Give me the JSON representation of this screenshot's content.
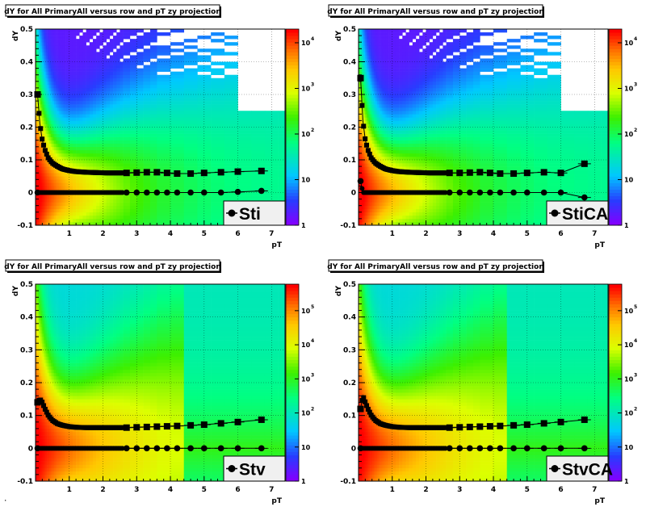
{
  "footer_text": "·",
  "chart_data": [
    {
      "type": "heatmap",
      "title": "dY for All PrimaryAll versus row and pT zy projection",
      "xlabel": "pT",
      "ylabel": "dY",
      "xlim": [
        0,
        7.4
      ],
      "ylim": [
        -0.1,
        0.5
      ],
      "x_ticks": [
        "1",
        "2",
        "3",
        "4",
        "5",
        "6",
        "7"
      ],
      "y_ticks": [
        "-0.1",
        "0",
        "0.1",
        "0.2",
        "0.3",
        "0.4",
        "0.5"
      ],
      "colorbar": {
        "scale": "log",
        "labels": [
          {
            "text": "1",
            "v": 1
          },
          {
            "text": "10",
            "v": 10
          },
          {
            "text": "10",
            "exp": "2",
            "v": 100
          },
          {
            "text": "10",
            "exp": "3",
            "v": 1000
          },
          {
            "text": "10",
            "exp": "4",
            "v": 10000
          }
        ],
        "max": 20000
      },
      "legend": {
        "label": "Sti",
        "placement": "bottom-right"
      },
      "fill": "sparse",
      "sigma_series": {
        "x": [
          0.06,
          0.13,
          0.2,
          0.28,
          0.38,
          0.5,
          0.65,
          0.8,
          1.0,
          1.2,
          1.5,
          1.8,
          2.1,
          2.4,
          2.7,
          3.0,
          3.3,
          3.6,
          3.9,
          4.2,
          4.6,
          5.0,
          5.5,
          6.0,
          6.7
        ],
        "y": [
          0.3,
          0.21,
          0.16,
          0.13,
          0.105,
          0.09,
          0.08,
          0.072,
          0.067,
          0.064,
          0.062,
          0.061,
          0.06,
          0.06,
          0.06,
          0.061,
          0.062,
          0.062,
          0.06,
          0.058,
          0.058,
          0.06,
          0.062,
          0.064,
          0.066
        ]
      },
      "mean_series": {
        "x": [
          0.06,
          0.13,
          0.2,
          0.28,
          0.38,
          0.5,
          0.65,
          0.8,
          1.0,
          1.2,
          1.5,
          1.8,
          2.1,
          2.4,
          2.7,
          3.0,
          3.3,
          3.6,
          3.9,
          4.2,
          4.6,
          5.0,
          5.5,
          6.0,
          6.7
        ],
        "y": [
          0.0,
          0.0,
          0.0,
          0.0,
          0.0,
          0.0,
          0.0,
          0.0,
          0.0,
          0.0,
          0.0,
          0.0,
          0.0,
          0.0,
          0.0,
          0.0,
          0.0,
          0.0,
          0.0,
          0.0,
          0.0,
          0.0,
          0.0,
          0.002,
          0.005
        ]
      }
    },
    {
      "type": "heatmap",
      "title": "dY for All PrimaryAll versus row and pT zy projection",
      "xlabel": "pT",
      "ylabel": "dY",
      "xlim": [
        0,
        7.4
      ],
      "ylim": [
        -0.1,
        0.5
      ],
      "x_ticks": [
        "1",
        "2",
        "3",
        "4",
        "5",
        "6",
        "7"
      ],
      "y_ticks": [
        "-0.1",
        "0",
        "0.1",
        "0.2",
        "0.3",
        "0.4",
        "0.5"
      ],
      "colorbar": {
        "scale": "log",
        "labels": [
          {
            "text": "1",
            "v": 1
          },
          {
            "text": "10",
            "v": 10
          },
          {
            "text": "10",
            "exp": "2",
            "v": 100
          },
          {
            "text": "10",
            "exp": "3",
            "v": 1000
          },
          {
            "text": "10",
            "exp": "4",
            "v": 10000
          }
        ],
        "max": 20000
      },
      "legend": {
        "label": "StiCA",
        "placement": "bottom-right"
      },
      "fill": "sparse",
      "sigma_series": {
        "x": [
          0.06,
          0.13,
          0.2,
          0.28,
          0.38,
          0.5,
          0.65,
          0.8,
          1.0,
          1.2,
          1.5,
          1.8,
          2.1,
          2.4,
          2.7,
          3.0,
          3.3,
          3.6,
          3.9,
          4.2,
          4.6,
          5.0,
          5.5,
          6.0,
          6.7
        ],
        "y": [
          0.35,
          0.22,
          0.16,
          0.13,
          0.105,
          0.09,
          0.08,
          0.072,
          0.067,
          0.064,
          0.062,
          0.061,
          0.06,
          0.06,
          0.06,
          0.06,
          0.061,
          0.062,
          0.06,
          0.058,
          0.058,
          0.06,
          0.062,
          0.06,
          0.088
        ]
      },
      "mean_series": {
        "x": [
          0.06,
          0.13,
          0.2,
          0.28,
          0.38,
          0.5,
          0.65,
          0.8,
          1.0,
          1.2,
          1.5,
          1.8,
          2.1,
          2.4,
          2.7,
          3.0,
          3.3,
          3.6,
          3.9,
          4.2,
          4.6,
          5.0,
          5.5,
          6.0,
          6.7
        ],
        "y": [
          0.035,
          0.0,
          0.0,
          0.0,
          0.0,
          0.0,
          0.0,
          0.0,
          0.0,
          0.0,
          0.0,
          0.0,
          0.0,
          0.0,
          0.0,
          0.0,
          0.0,
          0.0,
          0.0,
          0.0,
          0.0,
          0.0,
          0.0,
          0.0,
          -0.015
        ]
      }
    },
    {
      "type": "heatmap",
      "title": "dY for All PrimaryAll versus row and pT zy projection",
      "xlabel": "pT",
      "ylabel": "dY",
      "xlim": [
        0,
        7.4
      ],
      "ylim": [
        -0.1,
        0.5
      ],
      "x_ticks": [
        "1",
        "2",
        "3",
        "4",
        "5",
        "6",
        "7"
      ],
      "y_ticks": [
        "-0.1",
        "0",
        "0.1",
        "0.2",
        "0.3",
        "0.4",
        "0.5"
      ],
      "colorbar": {
        "scale": "log",
        "labels": [
          {
            "text": "1",
            "v": 1
          },
          {
            "text": "10",
            "v": 10
          },
          {
            "text": "10",
            "exp": "2",
            "v": 100
          },
          {
            "text": "10",
            "exp": "3",
            "v": 1000
          },
          {
            "text": "10",
            "exp": "4",
            "v": 10000
          },
          {
            "text": "10",
            "exp": "5",
            "v": 100000
          }
        ],
        "max": 600000
      },
      "legend": {
        "label": "Stv",
        "placement": "bottom-right"
      },
      "fill": "dense",
      "sigma_series": {
        "x": [
          0.06,
          0.13,
          0.2,
          0.28,
          0.38,
          0.5,
          0.65,
          0.8,
          1.0,
          1.2,
          1.5,
          1.8,
          2.1,
          2.4,
          2.7,
          3.0,
          3.3,
          3.6,
          3.9,
          4.2,
          4.6,
          5.0,
          5.5,
          6.0,
          6.7
        ],
        "y": [
          0.14,
          0.15,
          0.14,
          0.12,
          0.1,
          0.085,
          0.075,
          0.07,
          0.066,
          0.064,
          0.063,
          0.063,
          0.063,
          0.063,
          0.063,
          0.064,
          0.065,
          0.066,
          0.067,
          0.068,
          0.07,
          0.072,
          0.076,
          0.08,
          0.087
        ]
      },
      "mean_series": {
        "x": [
          0.06,
          0.13,
          0.2,
          0.28,
          0.38,
          0.5,
          0.65,
          0.8,
          1.0,
          1.2,
          1.5,
          1.8,
          2.1,
          2.4,
          2.7,
          3.0,
          3.3,
          3.6,
          3.9,
          4.2,
          4.6,
          5.0,
          5.5,
          6.0,
          6.7
        ],
        "y": [
          0.0,
          0.0,
          0.0,
          0.0,
          0.0,
          0.0,
          0.0,
          0.0,
          0.0,
          0.0,
          0.0,
          0.0,
          0.0,
          0.0,
          0.0,
          0.0,
          0.0,
          0.0,
          0.0,
          0.0,
          0.0,
          0.0,
          0.0,
          0.0,
          0.0
        ]
      }
    },
    {
      "type": "heatmap",
      "title": "dY for All PrimaryAll versus row and pT zy projection",
      "xlabel": "pT",
      "ylabel": "dY",
      "xlim": [
        0,
        7.4
      ],
      "ylim": [
        -0.1,
        0.5
      ],
      "x_ticks": [
        "1",
        "2",
        "3",
        "4",
        "5",
        "6",
        "7"
      ],
      "y_ticks": [
        "-0.1",
        "0",
        "0.1",
        "0.2",
        "0.3",
        "0.4",
        "0.5"
      ],
      "colorbar": {
        "scale": "log",
        "labels": [
          {
            "text": "1",
            "v": 1
          },
          {
            "text": "10",
            "v": 10
          },
          {
            "text": "10",
            "exp": "2",
            "v": 100
          },
          {
            "text": "10",
            "exp": "3",
            "v": 1000
          },
          {
            "text": "10",
            "exp": "4",
            "v": 10000
          },
          {
            "text": "10",
            "exp": "5",
            "v": 100000
          }
        ],
        "max": 600000
      },
      "legend": {
        "label": "StvCA",
        "placement": "bottom-right"
      },
      "fill": "dense",
      "sigma_series": {
        "x": [
          0.06,
          0.13,
          0.2,
          0.28,
          0.38,
          0.5,
          0.65,
          0.8,
          1.0,
          1.2,
          1.5,
          1.8,
          2.1,
          2.4,
          2.7,
          3.0,
          3.3,
          3.6,
          3.9,
          4.2,
          4.6,
          5.0,
          5.5,
          6.0,
          6.7
        ],
        "y": [
          0.12,
          0.16,
          0.14,
          0.12,
          0.1,
          0.085,
          0.075,
          0.07,
          0.066,
          0.064,
          0.063,
          0.063,
          0.063,
          0.063,
          0.063,
          0.064,
          0.065,
          0.066,
          0.067,
          0.068,
          0.07,
          0.072,
          0.076,
          0.08,
          0.087
        ]
      },
      "mean_series": {
        "x": [
          0.06,
          0.13,
          0.2,
          0.28,
          0.38,
          0.5,
          0.65,
          0.8,
          1.0,
          1.2,
          1.5,
          1.8,
          2.1,
          2.4,
          2.7,
          3.0,
          3.3,
          3.6,
          3.9,
          4.2,
          4.6,
          5.0,
          5.5,
          6.0,
          6.7
        ],
        "y": [
          0.0,
          0.0,
          0.0,
          0.0,
          0.0,
          0.0,
          0.0,
          0.0,
          0.0,
          0.0,
          0.0,
          0.0,
          0.0,
          0.0,
          0.0,
          0.0,
          0.0,
          0.0,
          0.0,
          0.0,
          0.0,
          0.0,
          0.0,
          0.0,
          0.0
        ]
      }
    }
  ]
}
